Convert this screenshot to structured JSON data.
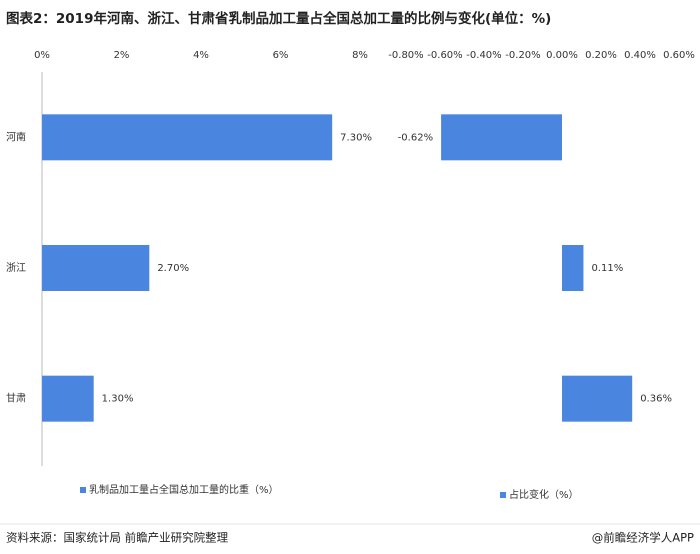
{
  "chart_data": [
    {
      "type": "bar",
      "orientation": "horizontal",
      "title": "图表2：2019年河南、浙江、甘肃省乳制品加工量占全国总加工量的比例与变化(单位：%)",
      "categories": [
        "河南",
        "浙江",
        "甘肃"
      ],
      "series": [
        {
          "name": "乳制品加工量占全国总加工量的比重（%）",
          "color": "#4a86e0",
          "values": [
            7.3,
            2.7,
            1.3
          ],
          "value_labels": [
            "7.30%",
            "2.70%",
            "1.30%"
          ]
        }
      ],
      "xlim": [
        0,
        8
      ],
      "xticks": [
        {
          "value": 0,
          "label": "0%"
        },
        {
          "value": 2,
          "label": "2%"
        },
        {
          "value": 4,
          "label": "4%"
        },
        {
          "value": 6,
          "label": "6%"
        },
        {
          "value": 8,
          "label": "8%"
        }
      ]
    },
    {
      "type": "bar",
      "orientation": "horizontal",
      "series": [
        {
          "name": "占比变化（%）",
          "color": "#4a86e0",
          "values": [
            -0.62,
            0.11,
            0.36
          ],
          "value_labels": [
            "-0.62%",
            "0.11%",
            "0.36%"
          ]
        }
      ],
      "xlim": [
        -0.8,
        0.6
      ],
      "xticks": [
        {
          "value": -0.8,
          "label": "-0.80%"
        },
        {
          "value": -0.6,
          "label": "-0.60%"
        },
        {
          "value": -0.4,
          "label": "-0.40%"
        },
        {
          "value": -0.2,
          "label": "-0.20%"
        },
        {
          "value": 0,
          "label": "0.00%"
        },
        {
          "value": 0.2,
          "label": "0.20%"
        },
        {
          "value": 0.4,
          "label": "0.40%"
        },
        {
          "value": 0.6,
          "label": "0.60%"
        }
      ]
    }
  ],
  "footer": {
    "source": "资料来源：国家统计局 前瞻产业研究院整理",
    "credit": "@前瞻经济学人APP"
  }
}
